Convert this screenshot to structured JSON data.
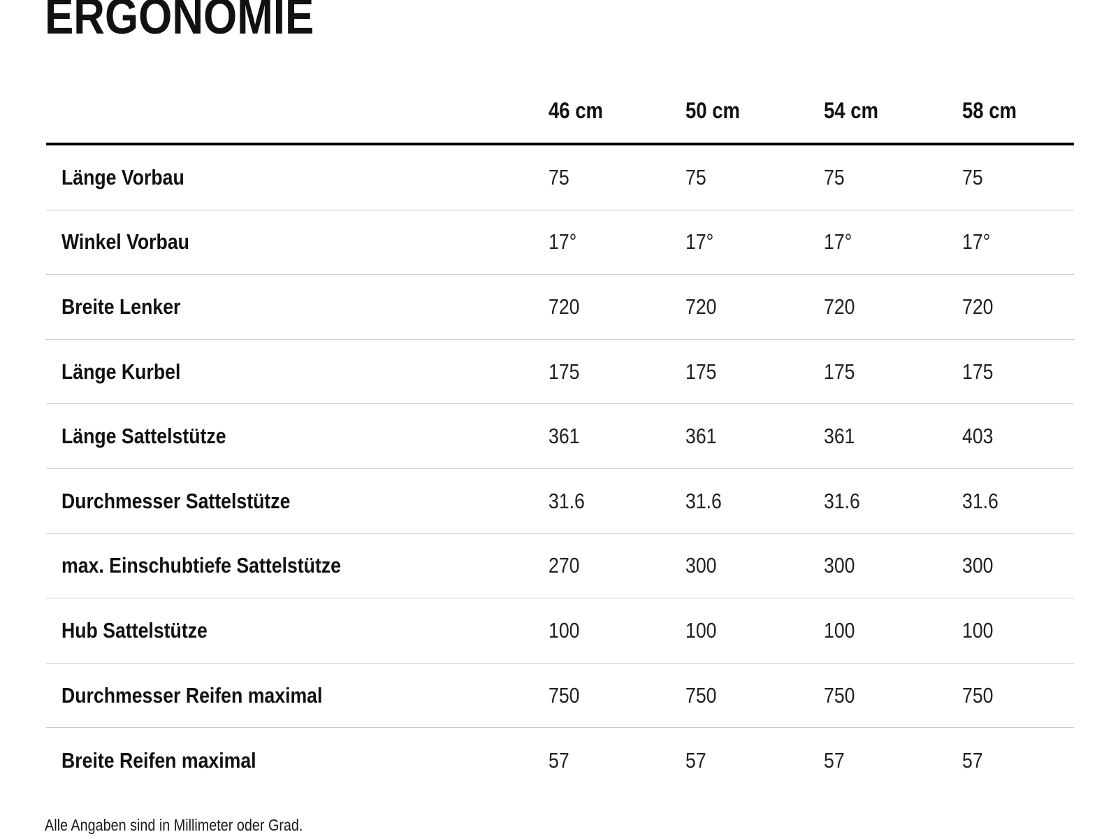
{
  "page": {
    "title": "ERGONOMIE",
    "footnote": "Alle Angaben sind in Millimeter oder Grad."
  },
  "table": {
    "columns": [
      "46 cm",
      "50 cm",
      "54 cm",
      "58 cm"
    ],
    "rows": [
      {
        "label": "Länge Vorbau",
        "values": [
          "75",
          "75",
          "75",
          "75"
        ]
      },
      {
        "label": "Winkel Vorbau",
        "values": [
          "17°",
          "17°",
          "17°",
          "17°"
        ]
      },
      {
        "label": "Breite Lenker",
        "values": [
          "720",
          "720",
          "720",
          "720"
        ]
      },
      {
        "label": "Länge Kurbel",
        "values": [
          "175",
          "175",
          "175",
          "175"
        ]
      },
      {
        "label": "Länge Sattelstütze",
        "values": [
          "361",
          "361",
          "361",
          "403"
        ]
      },
      {
        "label": "Durchmesser Sattelstütze",
        "values": [
          "31.6",
          "31.6",
          "31.6",
          "31.6"
        ]
      },
      {
        "label": "max. Einschubtiefe Sattelstütze",
        "values": [
          "270",
          "300",
          "300",
          "300"
        ]
      },
      {
        "label": "Hub Sattelstütze",
        "values": [
          "100",
          "100",
          "100",
          "100"
        ]
      },
      {
        "label": "Durchmesser Reifen maximal",
        "values": [
          "750",
          "750",
          "750",
          "750"
        ]
      },
      {
        "label": "Breite Reifen maximal",
        "values": [
          "57",
          "57",
          "57",
          "57"
        ]
      }
    ]
  }
}
